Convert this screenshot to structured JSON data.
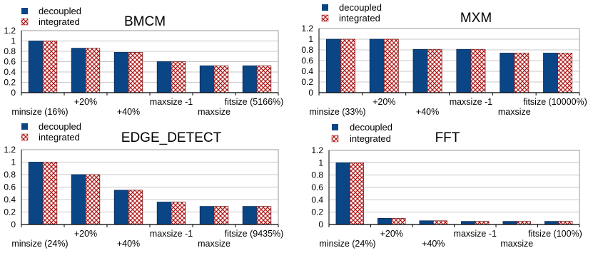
{
  "colors": {
    "decoupled": "#0a4585",
    "integrated_hatch": "#b01515",
    "gridline": "#c8c8c8",
    "axis": "#000000"
  },
  "chart_data": [
    {
      "type": "bar",
      "title": "BMCM",
      "legend": {
        "placement": "top-left",
        "entries": [
          "decoupled",
          "integrated"
        ]
      },
      "categories": [
        "minsize (16%)",
        "+20%",
        "+40%",
        "maxsize -1",
        "maxsize",
        "fitsize (5166%)"
      ],
      "series": [
        {
          "name": "decoupled",
          "values": [
            1.0,
            0.86,
            0.78,
            0.6,
            0.52,
            0.52
          ]
        },
        {
          "name": "integrated",
          "values": [
            1.0,
            0.86,
            0.78,
            0.6,
            0.52,
            0.52
          ]
        }
      ],
      "ylim": [
        0,
        1.2
      ],
      "yticks": [
        "0",
        "0.2",
        "0.4",
        "0.6",
        "0.8",
        "1",
        "1.2"
      ],
      "grid": true
    },
    {
      "type": "bar",
      "title": "MXM",
      "legend": {
        "placement": "top-left",
        "entries": [
          "decoupled",
          "integrated"
        ]
      },
      "categories": [
        "minsize (33%)",
        "+20%",
        "+40%",
        "maxsize -1",
        "maxsize",
        "fitsize (10000%)"
      ],
      "series": [
        {
          "name": "decoupled",
          "values": [
            1.0,
            1.0,
            0.81,
            0.81,
            0.74,
            0.74
          ]
        },
        {
          "name": "integrated",
          "values": [
            1.0,
            1.0,
            0.81,
            0.81,
            0.74,
            0.74
          ]
        }
      ],
      "ylim": [
        0,
        1.2
      ],
      "yticks": [
        "0",
        "0.2",
        "0.4",
        "0.6",
        "0.8",
        "1",
        "1.2"
      ],
      "grid": true
    },
    {
      "type": "bar",
      "title": "EDGE_DETECT",
      "legend": {
        "placement": "top-left",
        "entries": [
          "decoupled",
          "integrated"
        ]
      },
      "categories": [
        "minsize (24%)",
        "+20%",
        "+40%",
        "maxsize -1",
        "maxsize",
        "fitsize (9435%)"
      ],
      "series": [
        {
          "name": "decoupled",
          "values": [
            1.0,
            0.8,
            0.55,
            0.36,
            0.29,
            0.29
          ]
        },
        {
          "name": "integrated",
          "values": [
            1.0,
            0.8,
            0.55,
            0.36,
            0.29,
            0.29
          ]
        }
      ],
      "ylim": [
        0,
        1.2
      ],
      "yticks": [
        "0",
        "0.2",
        "0.4",
        "0.6",
        "0.8",
        "1",
        "1.2"
      ],
      "grid": true
    },
    {
      "type": "bar",
      "title": "FFT",
      "legend": {
        "placement": "top-left",
        "entries": [
          "decoupled",
          "integrated"
        ]
      },
      "categories": [
        "minsize (24%)",
        "+20%",
        "+40%",
        "maxsize -1",
        "maxsize",
        "fitsize (100%)"
      ],
      "series": [
        {
          "name": "decoupled",
          "values": [
            1.0,
            0.1,
            0.06,
            0.05,
            0.05,
            0.05
          ]
        },
        {
          "name": "integrated",
          "values": [
            1.0,
            0.1,
            0.06,
            0.05,
            0.05,
            0.05
          ]
        }
      ],
      "ylim": [
        0,
        1.2
      ],
      "yticks": [
        "0",
        "0.2",
        "0.4",
        "0.6",
        "0.8",
        "1",
        "1.2"
      ],
      "grid": true
    }
  ]
}
